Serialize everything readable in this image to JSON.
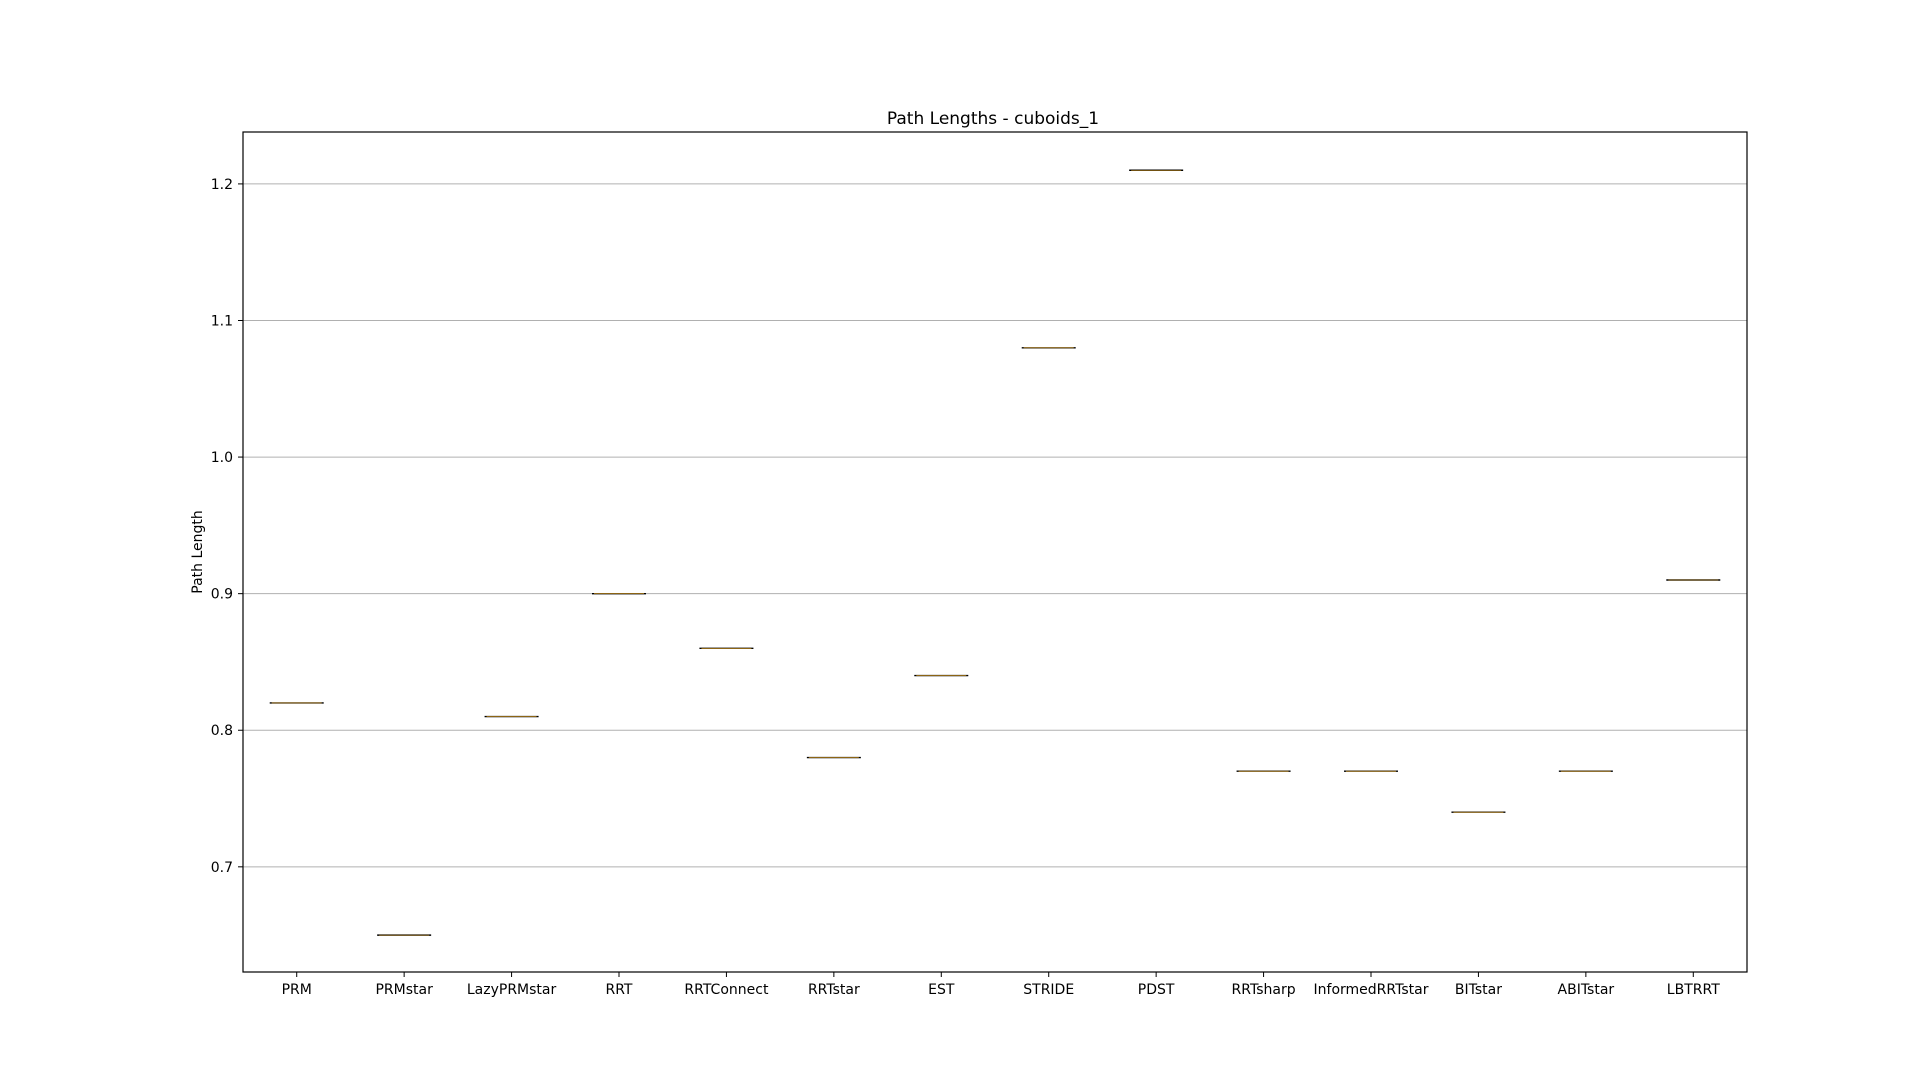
{
  "chart_data": {
    "type": "box",
    "title": "Path Lengths - cuboids_1",
    "xlabel": "",
    "ylabel": "Path Length",
    "categories": [
      "PRM",
      "PRMstar",
      "LazyPRMstar",
      "RRT",
      "RRTConnect",
      "RRTstar",
      "EST",
      "STRIDE",
      "PDST",
      "RRTsharp",
      "InformedRRTstar",
      "BITstar",
      "ABITstar",
      "LBTRRT"
    ],
    "values": [
      0.82,
      0.65,
      0.81,
      0.9,
      0.86,
      0.78,
      0.84,
      1.08,
      1.21,
      0.77,
      0.77,
      0.74,
      0.77,
      0.91
    ],
    "ylim": [
      0.623,
      1.238
    ],
    "yticks": [
      0.7,
      0.8,
      0.9,
      1.0,
      1.1,
      1.2
    ],
    "ytick_labels": [
      "0.7",
      "0.8",
      "0.9",
      "1.0",
      "1.1",
      "1.2"
    ],
    "grid": "y",
    "legend": "none"
  }
}
